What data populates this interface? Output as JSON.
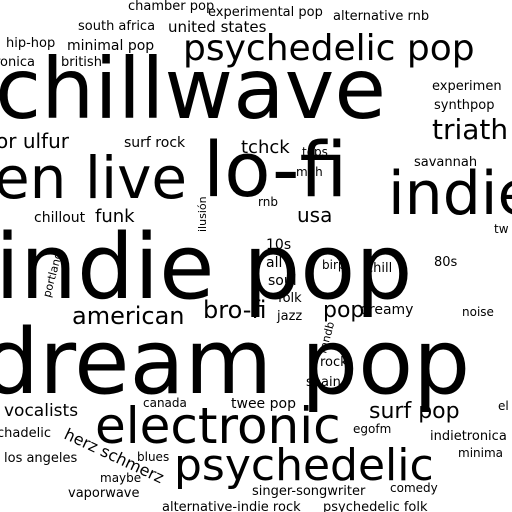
{
  "word_cloud": {
    "color": "#000000",
    "background": "#ffffff",
    "words": [
      {
        "id": "dream-pop",
        "text": "dream pop"
      },
      {
        "id": "indie-pop",
        "text": "indie pop"
      },
      {
        "id": "chillwave",
        "text": "chillwave"
      },
      {
        "id": "lo-fi",
        "text": "lo-fi"
      },
      {
        "id": "indie",
        "text": "indie"
      },
      {
        "id": "electronic",
        "text": "electronic"
      },
      {
        "id": "psychedelic",
        "text": "psychedelic"
      },
      {
        "id": "psychedelic-pop",
        "text": "psychedelic pop"
      },
      {
        "id": "en-live",
        "text": "en live"
      },
      {
        "id": "triathalon",
        "text": "triath"
      },
      {
        "id": "american",
        "text": "american"
      },
      {
        "id": "bro-fi",
        "text": "bro-fi"
      },
      {
        "id": "surf-pop",
        "text": "surf pop"
      },
      {
        "id": "pop",
        "text": "pop"
      },
      {
        "id": "usa",
        "text": "usa"
      },
      {
        "id": "funk",
        "text": "funk"
      },
      {
        "id": "tchck",
        "text": "tchck"
      },
      {
        "id": "vocalists",
        "text": "vocalists"
      },
      {
        "id": "herz-schmerz",
        "text": "herz schmerz"
      },
      {
        "id": "surf-rock",
        "text": "surf rock"
      },
      {
        "id": "ten-s",
        "text": "10s"
      },
      {
        "id": "all",
        "text": "all"
      },
      {
        "id": "soul",
        "text": "soul"
      },
      {
        "id": "folk",
        "text": "folk"
      },
      {
        "id": "jazz",
        "text": "jazz"
      },
      {
        "id": "dreamy",
        "text": "dreamy"
      },
      {
        "id": "twee-pop",
        "text": "twee pop"
      },
      {
        "id": "chillout",
        "text": "chillout"
      },
      {
        "id": "or-ulfur",
        "text": "or ulfur"
      },
      {
        "id": "british",
        "text": "british"
      },
      {
        "id": "minimal-pop",
        "text": "minimal pop"
      },
      {
        "id": "hip-hop",
        "text": "hip-hop"
      },
      {
        "id": "ronica",
        "text": "ronica"
      },
      {
        "id": "south-africa",
        "text": "south africa"
      },
      {
        "id": "chamber-pop",
        "text": "chamber pop"
      },
      {
        "id": "united-states",
        "text": "united states"
      },
      {
        "id": "experimental-pop",
        "text": "experimental pop"
      },
      {
        "id": "alternative-rnb",
        "text": "alternative rnb"
      },
      {
        "id": "experimen",
        "text": "experimen"
      },
      {
        "id": "synthpop",
        "text": "synthpop"
      },
      {
        "id": "tops",
        "text": "tops"
      },
      {
        "id": "meh",
        "text": "meh"
      },
      {
        "id": "savannah",
        "text": "savannah"
      },
      {
        "id": "rnb",
        "text": "rnb"
      },
      {
        "id": "ilusion",
        "text": "ilusión"
      },
      {
        "id": "birp",
        "text": "birp"
      },
      {
        "id": "chill",
        "text": "chill"
      },
      {
        "id": "eighties",
        "text": "80s"
      },
      {
        "id": "tw",
        "text": "tw"
      },
      {
        "id": "noise",
        "text": "noise"
      },
      {
        "id": "randb",
        "text": "randb"
      },
      {
        "id": "rock",
        "text": "rock"
      },
      {
        "id": "spain",
        "text": "spain"
      },
      {
        "id": "canada",
        "text": "canada"
      },
      {
        "id": "egofm",
        "text": "egofm"
      },
      {
        "id": "indietronica",
        "text": "indietronica"
      },
      {
        "id": "minima",
        "text": "minima"
      },
      {
        "id": "el",
        "text": "el"
      },
      {
        "id": "chadelic",
        "text": "chadelic"
      },
      {
        "id": "los-angeles",
        "text": "los angeles"
      },
      {
        "id": "blues",
        "text": "blues"
      },
      {
        "id": "maybe",
        "text": "maybe"
      },
      {
        "id": "vaporwave",
        "text": "vaporwave"
      },
      {
        "id": "singer-songwriter",
        "text": "singer-songwriter"
      },
      {
        "id": "comedy",
        "text": "comedy"
      },
      {
        "id": "alternative-indie-rock",
        "text": "alternative-indie rock"
      },
      {
        "id": "psychedelic-folk",
        "text": "psychedelic folk"
      },
      {
        "id": "portland",
        "text": "portland"
      }
    ]
  }
}
